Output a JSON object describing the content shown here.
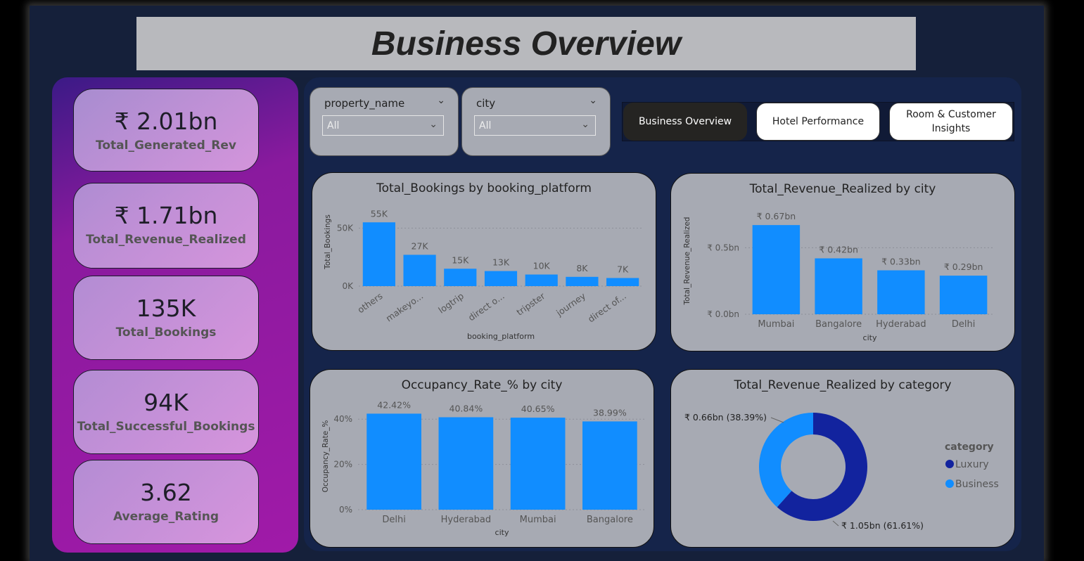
{
  "title": "Business Overview",
  "kpis": [
    {
      "value": "₹ 2.01bn",
      "label": "Total_Generated_Rev"
    },
    {
      "value": "₹ 1.71bn",
      "label": "Total_Revenue_Realized"
    },
    {
      "value": "135K",
      "label": "Total_Bookings"
    },
    {
      "value": "94K",
      "label": "Total_Successful_Bookings"
    },
    {
      "value": "3.62",
      "label": "Average_Rating"
    }
  ],
  "slicers": [
    {
      "label": "property_name",
      "value": "All"
    },
    {
      "label": "city",
      "value": "All"
    }
  ],
  "nav": {
    "business_overview": "Business Overview",
    "hotel_performance": "Hotel Performance",
    "room_customer_line1": "Room & Customer",
    "room_customer_line2": "Insights"
  },
  "colors": {
    "bar": "#118dff",
    "luxury": "#12239e",
    "business": "#118dff"
  },
  "chart_data": [
    {
      "type": "bar",
      "title": "Total_Bookings by booking_platform",
      "xlabel": "booking_platform",
      "ylabel": "Total_Bookings",
      "categories": [
        "others",
        "makeyo...",
        "logtrip",
        "direct o...",
        "tripster",
        "journey",
        "direct of..."
      ],
      "values": [
        55000,
        27000,
        15000,
        13000,
        10000,
        8000,
        7000
      ],
      "data_labels": [
        "55K",
        "27K",
        "15K",
        "13K",
        "10K",
        "8K",
        "7K"
      ],
      "ylim": [
        0,
        60000
      ],
      "yticks": [
        0,
        50000
      ],
      "ytick_labels": [
        "0K",
        "50K"
      ]
    },
    {
      "type": "bar",
      "title": "Total_Revenue_Realized by city",
      "xlabel": "city",
      "ylabel": "Total_Revenue_Realized",
      "categories": [
        "Mumbai",
        "Bangalore",
        "Hyderabad",
        "Delhi"
      ],
      "values": [
        0.67,
        0.42,
        0.33,
        0.29
      ],
      "data_labels": [
        "₹ 0.67bn",
        "₹ 0.42bn",
        "₹ 0.33bn",
        "₹ 0.29bn"
      ],
      "ylim": [
        0,
        0.75
      ],
      "yticks": [
        0,
        0.5
      ],
      "ytick_labels": [
        "₹ 0.0bn",
        "₹ 0.5bn"
      ]
    },
    {
      "type": "bar",
      "title": "Occupancy_Rate_% by city",
      "xlabel": "city",
      "ylabel": "Occupancy_Rate_%",
      "categories": [
        "Delhi",
        "Hyderabad",
        "Mumbai",
        "Bangalore"
      ],
      "values": [
        42.42,
        40.84,
        40.65,
        38.99
      ],
      "data_labels": [
        "42.42%",
        "40.84%",
        "40.65%",
        "38.99%"
      ],
      "ylim": [
        0,
        50
      ],
      "yticks": [
        0,
        20,
        40
      ],
      "ytick_labels": [
        "0%",
        "20%",
        "40%"
      ]
    },
    {
      "type": "pie",
      "title": "Total_Revenue_Realized by category",
      "legend_title": "category",
      "categories": [
        "Luxury",
        "Business"
      ],
      "values": [
        61.61,
        38.39
      ],
      "data_labels": [
        "₹ 1.05bn (61.61%)",
        "₹ 0.66bn (38.39%)"
      ],
      "legend_position": "right"
    }
  ]
}
